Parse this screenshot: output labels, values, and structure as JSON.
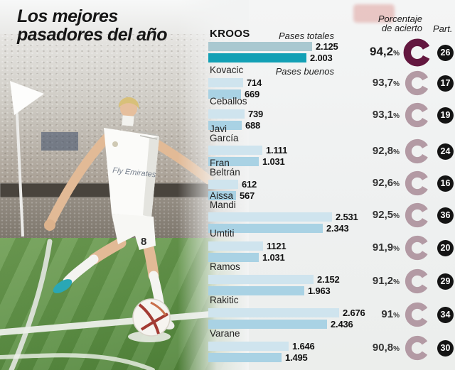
{
  "title": {
    "line1": "Los mejores",
    "line2": "pasadores del año"
  },
  "columns": {
    "pct_line1": "Porcentaje",
    "pct_line2": "de acierto",
    "part": "Part."
  },
  "bar_labels": {
    "totales": "Pases totales",
    "buenos": "Pases buenos"
  },
  "pct_suffix": "%",
  "photo": {
    "jersey_sponsor": "Fly Emirates",
    "shorts_number": "8"
  },
  "colors": {
    "bar_total": "#cfe4ee",
    "bar_good": "#a9d2e4",
    "bar_total_hl": "#a9c8d0",
    "bar_good_hl": "#12a0b5",
    "ring": "#b39aa4",
    "ring_hl": "#63173f",
    "badge": "#141414"
  },
  "chart_data": {
    "type": "bar",
    "orientation": "horizontal",
    "title": "Los mejores pasadores del año",
    "series_labels": [
      "Pases totales",
      "Pases buenos"
    ],
    "value_max": 2676,
    "rows": [
      {
        "name": "Kroos",
        "name_lines": [
          "KROOS"
        ],
        "totales": 2125,
        "buenos": 2003,
        "totales_label": "2.125",
        "buenos_label": "2.003",
        "pct": 94.2,
        "pct_label": "94,2",
        "part": "26",
        "highlight": true
      },
      {
        "name": "Kovacic",
        "name_lines": [
          "Kovacic"
        ],
        "totales": 714,
        "buenos": 669,
        "totales_label": "714",
        "buenos_label": "669",
        "pct": 93.7,
        "pct_label": "93,7",
        "part": "17",
        "highlight": false
      },
      {
        "name": "Ceballos",
        "name_lines": [
          "Ceballos"
        ],
        "totales": 739,
        "buenos": 688,
        "totales_label": "739",
        "buenos_label": "688",
        "pct": 93.1,
        "pct_label": "93,1",
        "part": "19",
        "highlight": false
      },
      {
        "name": "Javi García",
        "name_lines": [
          "Javi",
          "García"
        ],
        "totales": 1111,
        "buenos": 1031,
        "totales_label": "1.111",
        "buenos_label": "1.031",
        "pct": 92.8,
        "pct_label": "92,8",
        "part": "24",
        "highlight": false
      },
      {
        "name": "Fran Beltrán",
        "name_lines": [
          "Fran",
          "Beltrán"
        ],
        "totales": 612,
        "buenos": 567,
        "totales_label": "612",
        "buenos_label": "567",
        "pct": 92.6,
        "pct_label": "92,6",
        "part": "16",
        "highlight": false
      },
      {
        "name": "Aissa Mandi",
        "name_lines": [
          "Aissa",
          "Mandi"
        ],
        "totales": 2531,
        "buenos": 2343,
        "totales_label": "2.531",
        "buenos_label": "2.343",
        "pct": 92.5,
        "pct_label": "92,5",
        "part": "36",
        "highlight": false
      },
      {
        "name": "Umtiti",
        "name_lines": [
          "Umtiti"
        ],
        "totales": 1121,
        "buenos": 1031,
        "totales_label": "1121",
        "buenos_label": "1.031",
        "pct": 91.9,
        "pct_label": "91,9",
        "part": "20",
        "highlight": false
      },
      {
        "name": "Ramos",
        "name_lines": [
          "Ramos"
        ],
        "totales": 2152,
        "buenos": 1963,
        "totales_label": "2.152",
        "buenos_label": "1.963",
        "pct": 91.2,
        "pct_label": "91,2",
        "part": "29",
        "highlight": false
      },
      {
        "name": "Rakitic",
        "name_lines": [
          "Rakitic"
        ],
        "totales": 2676,
        "buenos": 2436,
        "totales_label": "2.676",
        "buenos_label": "2.436",
        "pct": 91.0,
        "pct_label": "91",
        "part": "34",
        "highlight": false
      },
      {
        "name": "Varane",
        "name_lines": [
          "Varane"
        ],
        "totales": 1646,
        "buenos": 1495,
        "totales_label": "1.646",
        "buenos_label": "1.495",
        "pct": 90.8,
        "pct_label": "90,8",
        "part": "30",
        "highlight": false
      }
    ]
  }
}
